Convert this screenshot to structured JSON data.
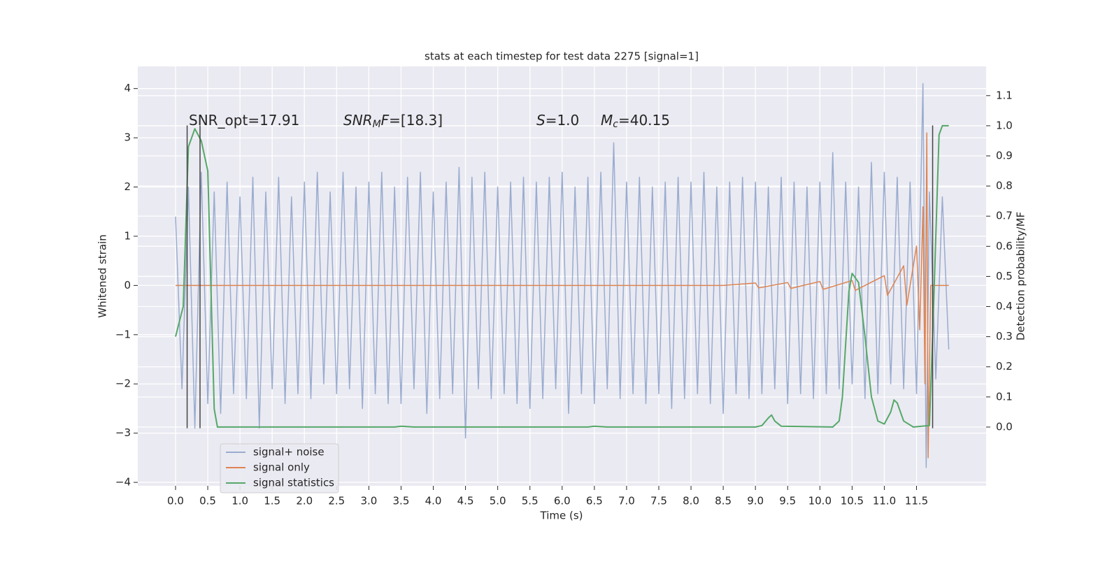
{
  "chart_data": {
    "type": "line",
    "title": "stats at each timestep for test data 2275 [signal=1]",
    "xlabel": "Time (s)",
    "ylabel": "Whitened strain",
    "y2label": "Detection probability/MF",
    "xlim": [
      -0.586,
      12.58
    ],
    "ylim": [
      -4.07,
      4.45
    ],
    "y2lim": [
      -0.195,
      1.197
    ],
    "xticks": [
      {
        "value": 0,
        "label": "0.0"
      },
      0.5,
      {
        "value": 1,
        "label": "1.0"
      },
      1.5,
      {
        "value": 2,
        "label": "2.0"
      },
      2.5,
      {
        "value": 3,
        "label": "3.0"
      },
      3.5,
      {
        "value": 4,
        "label": "4.0"
      },
      4.5,
      {
        "value": 5,
        "label": "5.0"
      },
      5.5,
      {
        "value": 6,
        "label": "6.0"
      },
      6.5,
      {
        "value": 7,
        "label": "7.0"
      },
      7.5,
      {
        "value": 8,
        "label": "8.0"
      },
      8.5,
      {
        "value": 9,
        "label": "9.0"
      },
      9.5,
      {
        "value": 10,
        "label": "10.0"
      },
      10.5,
      {
        "value": 11,
        "label": "11.0"
      },
      11.5
    ],
    "yticks": [
      {
        "value": -4,
        "label": "−4"
      },
      {
        "value": -3,
        "label": "−3"
      },
      {
        "value": -2,
        "label": "−2"
      },
      {
        "value": -1,
        "label": "−1"
      },
      0,
      1,
      2,
      3,
      4
    ],
    "y2ticks": [
      {
        "value": 0,
        "label": "0.0"
      },
      0.1,
      0.2,
      0.3,
      0.4,
      0.5,
      0.6,
      0.7,
      0.8,
      0.9,
      {
        "value": 1,
        "label": "1.0"
      },
      1.1
    ],
    "grid": true,
    "legend": "lower left",
    "annotations": [
      [
        {
          "text": "SNR_opt=17.91"
        }
      ],
      [
        {
          "text": "SNR",
          "italic": true
        },
        {
          "text": "M",
          "italic": true,
          "sub": true
        },
        {
          "text": "F",
          "italic": true
        },
        {
          "text": "=[18.3]"
        }
      ],
      [
        {
          "text": "S",
          "italic": true
        },
        {
          "text": "=1.0"
        }
      ],
      [
        {
          "text": "M",
          "italic": true
        },
        {
          "text": "c",
          "italic": true,
          "sub": true
        },
        {
          "text": "=40.15"
        }
      ]
    ],
    "vlines": {
      "x": [
        0.18,
        0.38,
        11.75
      ],
      "ymin": -2.9,
      "ymax": 3.25,
      "color": "#444444"
    },
    "series": [
      {
        "name": "signal+ noise",
        "color": "#9aaccf",
        "x": [
          0,
          0.1,
          0.2,
          0.3,
          0.4,
          0.5,
          0.6,
          0.7,
          0.8,
          0.9,
          1,
          1.1,
          1.2,
          1.3,
          1.4,
          1.5,
          1.6,
          1.7,
          1.8,
          1.9,
          2,
          2.1,
          2.2,
          2.3,
          2.4,
          2.5,
          2.6,
          2.7,
          2.8,
          2.9,
          3,
          3.1,
          3.2,
          3.3,
          3.4,
          3.5,
          3.6,
          3.7,
          3.8,
          3.9,
          4,
          4.1,
          4.2,
          4.3,
          4.4,
          4.5,
          4.6,
          4.7,
          4.8,
          4.9,
          5,
          5.1,
          5.2,
          5.3,
          5.4,
          5.5,
          5.6,
          5.7,
          5.8,
          5.9,
          6,
          6.1,
          6.2,
          6.3,
          6.4,
          6.5,
          6.6,
          6.7,
          6.8,
          6.9,
          7,
          7.1,
          7.2,
          7.3,
          7.4,
          7.5,
          7.6,
          7.7,
          7.8,
          7.9,
          8,
          8.1,
          8.2,
          8.3,
          8.4,
          8.5,
          8.6,
          8.7,
          8.8,
          8.9,
          9,
          9.1,
          9.2,
          9.3,
          9.4,
          9.5,
          9.6,
          9.7,
          9.8,
          9.9,
          10,
          10.1,
          10.2,
          10.3,
          10.4,
          10.5,
          10.6,
          10.7,
          10.8,
          10.9,
          11,
          11.1,
          11.2,
          11.3,
          11.4,
          11.5,
          11.6,
          11.65,
          11.7,
          11.8,
          11.9,
          12
        ],
        "values": [
          1.4,
          -2.1,
          2.0,
          -2.9,
          2.3,
          -2.4,
          1.9,
          -2.6,
          2.1,
          -2.2,
          1.8,
          -2.3,
          2.2,
          -2.9,
          1.9,
          -2.1,
          2.2,
          -2.4,
          1.8,
          -2.2,
          2.1,
          -2.3,
          2.3,
          -2.0,
          1.9,
          -2.2,
          2.3,
          -2.1,
          2.0,
          -2.5,
          2.1,
          -2.2,
          2.3,
          -2.4,
          2.0,
          -2.4,
          2.2,
          -2.1,
          2.3,
          -2.6,
          1.9,
          -2.3,
          2.1,
          -2.2,
          2.4,
          -3.1,
          2.2,
          -2.1,
          2.3,
          -2.3,
          2.0,
          -2.2,
          2.1,
          -2.4,
          2.2,
          -2.5,
          2.1,
          -2.3,
          2.2,
          -2.1,
          2.3,
          -2.6,
          2.0,
          -2.2,
          2.2,
          -2.4,
          2.3,
          -2.1,
          2.9,
          -2.3,
          2.1,
          -2.2,
          2.2,
          -2.4,
          2.0,
          -2.2,
          2.1,
          -2.5,
          2.2,
          -2.3,
          2.1,
          -2.2,
          2.3,
          -2.4,
          2.0,
          -2.6,
          2.1,
          -2.2,
          2.2,
          -2.3,
          2.1,
          -2.2,
          2.0,
          -2.1,
          2.2,
          -2.4,
          2.1,
          -2.2,
          2.0,
          -2.3,
          2.1,
          -2.2,
          2.7,
          -2.1,
          2.1,
          -2.0,
          2.0,
          -2.3,
          2.5,
          -2.2,
          2.3,
          -2.0,
          2.2,
          -2.1,
          2.1,
          -2.2,
          4.1,
          -3.7,
          1.9,
          -1.9,
          1.8,
          -1.3
        ]
      },
      {
        "name": "signal only",
        "color": "#dd8452",
        "x": [
          0,
          8.5,
          9.0,
          9.05,
          9.5,
          9.55,
          10.0,
          10.05,
          10.5,
          10.55,
          11.0,
          11.05,
          11.3,
          11.35,
          11.5,
          11.55,
          11.6,
          11.63,
          11.66,
          11.68,
          11.72,
          12.0
        ],
        "values": [
          0,
          0,
          0.05,
          -0.05,
          0.06,
          -0.06,
          0.08,
          -0.08,
          0.1,
          -0.1,
          0.2,
          -0.2,
          0.4,
          -0.4,
          0.8,
          -0.9,
          1.6,
          -2.0,
          3.1,
          -3.5,
          0,
          0
        ]
      },
      {
        "name": "signal statistics",
        "color": "#55a868",
        "axis": "y2",
        "x": [
          0,
          0.12,
          0.2,
          0.3,
          0.4,
          0.5,
          0.6,
          0.65,
          3.4,
          3.5,
          3.7,
          6.4,
          6.5,
          6.7,
          9.0,
          9.1,
          9.2,
          9.25,
          9.3,
          9.4,
          10.2,
          10.3,
          10.35,
          10.45,
          10.5,
          10.6,
          10.7,
          10.8,
          10.9,
          11.0,
          11.1,
          11.15,
          11.2,
          11.3,
          11.45,
          11.7,
          11.75,
          11.85,
          11.9,
          12.0
        ],
        "values": [
          0.3,
          0.4,
          0.93,
          0.99,
          0.95,
          0.85,
          0.06,
          0,
          0,
          0.003,
          0,
          0,
          0.003,
          0,
          0,
          0.005,
          0.03,
          0.04,
          0.02,
          0.003,
          0,
          0.02,
          0.1,
          0.45,
          0.51,
          0.48,
          0.3,
          0.1,
          0.02,
          0.01,
          0.05,
          0.09,
          0.08,
          0.02,
          0,
          0.005,
          0.3,
          0.97,
          1.0,
          1.0
        ]
      }
    ]
  }
}
